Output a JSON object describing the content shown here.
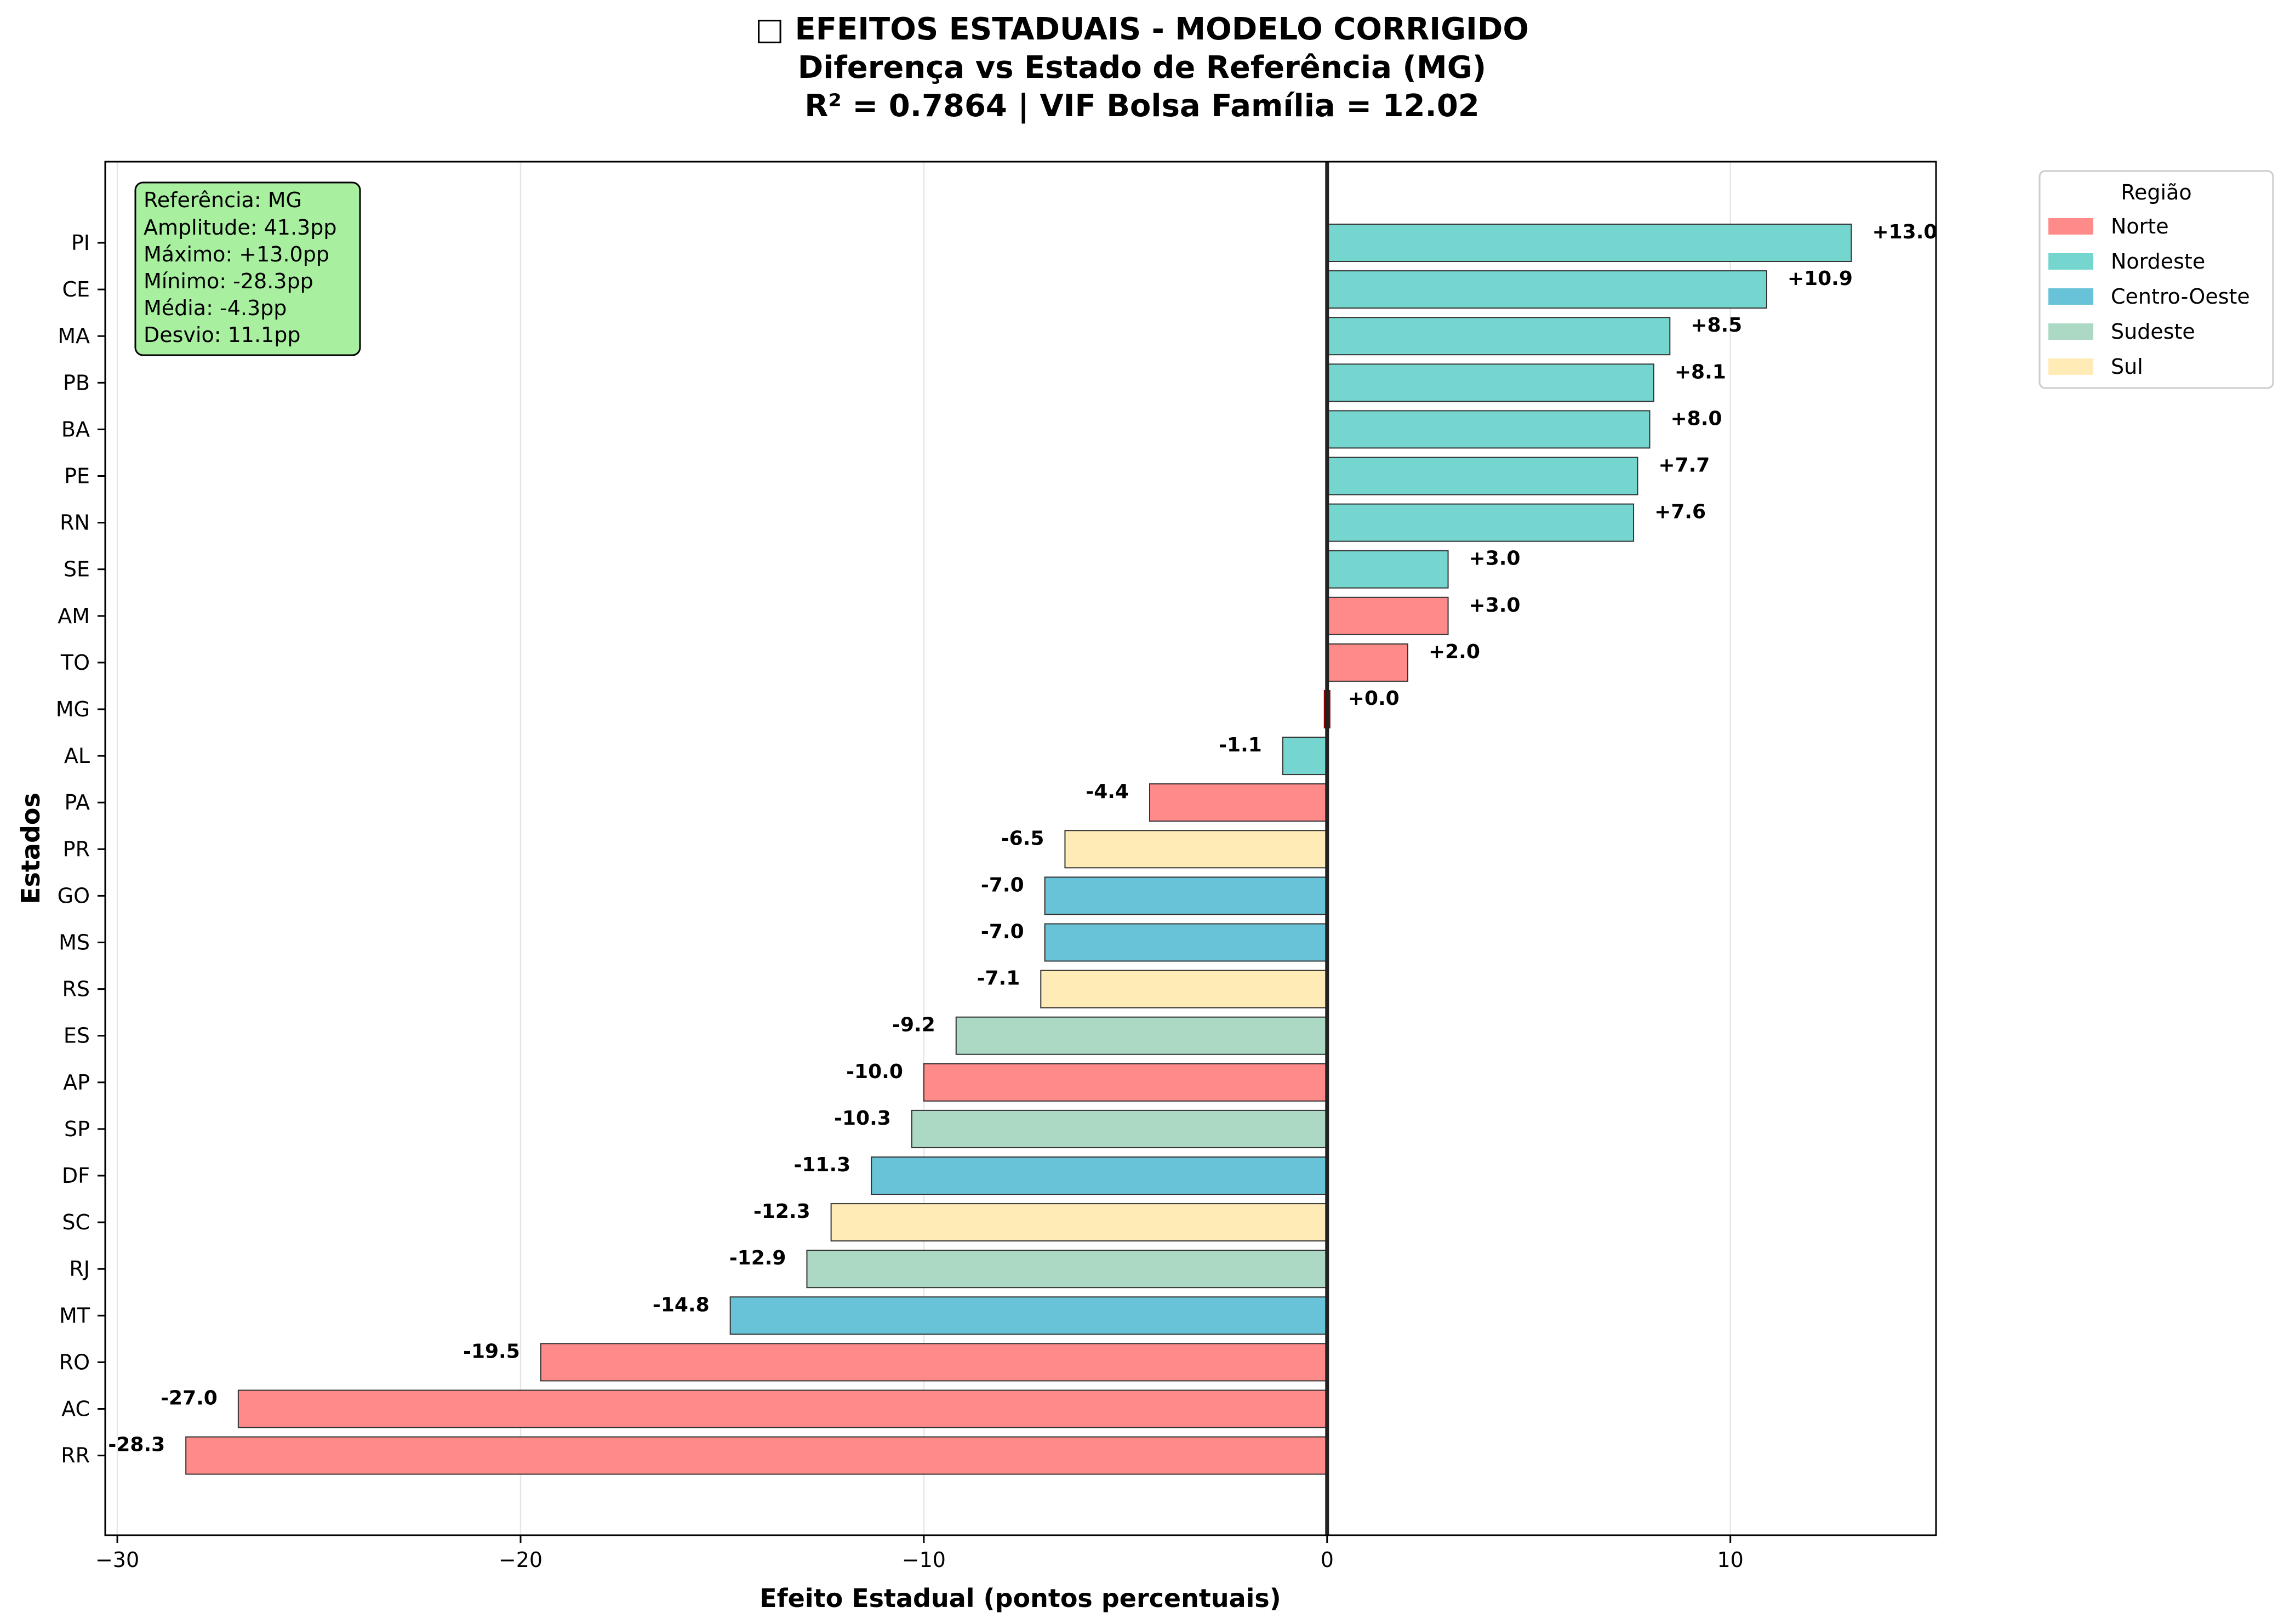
{
  "chart_data": {
    "type": "bar",
    "orientation": "horizontal",
    "title_lines": [
      "□ EFEITOS ESTADUAIS - MODELO CORRIGIDO",
      "Diferença vs Estado de Referência (MG)",
      "R² = 0.7864 | VIF Bolsa Família = 12.02"
    ],
    "xlabel": "Efeito Estadual (pontos percentuais)",
    "ylabel": "Estados",
    "xlim": [
      -30.3,
      15.1
    ],
    "xticks": [
      -30,
      -20,
      -10,
      0,
      10
    ],
    "xtick_labels": [
      "−30",
      "−20",
      "−10",
      "0",
      "10"
    ],
    "grid": "x",
    "reference_line": 0,
    "colors": {
      "Norte": "#ff8a8a",
      "Nordeste": "#74d6cf",
      "Centro-Oeste": "#68c3d8",
      "Sudeste": "#abd9c4",
      "Sul": "#ffebb5",
      "reference": "#8b0000"
    },
    "categories": [
      "PI",
      "CE",
      "MA",
      "PB",
      "BA",
      "PE",
      "RN",
      "SE",
      "AM",
      "TO",
      "MG",
      "AL",
      "PA",
      "PR",
      "GO",
      "MS",
      "RS",
      "ES",
      "AP",
      "SP",
      "DF",
      "SC",
      "RJ",
      "MT",
      "RO",
      "AC",
      "RR"
    ],
    "values": [
      13.0,
      10.9,
      8.5,
      8.1,
      8.0,
      7.7,
      7.6,
      3.0,
      3.0,
      2.0,
      0.0,
      -1.1,
      -4.4,
      -6.5,
      -7.0,
      -7.0,
      -7.1,
      -9.2,
      -10.0,
      -10.3,
      -11.3,
      -12.3,
      -12.9,
      -14.8,
      -19.5,
      -27.0,
      -28.3
    ],
    "value_labels": [
      "+13.0",
      "+10.9",
      "+8.5",
      "+8.1",
      "+8.0",
      "+7.7",
      "+7.6",
      "+3.0",
      "+3.0",
      "+2.0",
      "+0.0",
      "-1.1",
      "-4.4",
      "-6.5",
      "-7.0",
      "-7.0",
      "-7.1",
      "-9.2",
      "-10.0",
      "-10.3",
      "-11.3",
      "-12.3",
      "-12.9",
      "-14.8",
      "-19.5",
      "-27.0",
      "-28.3"
    ],
    "regions": [
      "Nordeste",
      "Nordeste",
      "Nordeste",
      "Nordeste",
      "Nordeste",
      "Nordeste",
      "Nordeste",
      "Nordeste",
      "Norte",
      "Norte",
      "reference",
      "Nordeste",
      "Norte",
      "Sul",
      "Centro-Oeste",
      "Centro-Oeste",
      "Sul",
      "Sudeste",
      "Norte",
      "Sudeste",
      "Centro-Oeste",
      "Sul",
      "Sudeste",
      "Centro-Oeste",
      "Norte",
      "Norte",
      "Norte"
    ],
    "stats_box": [
      "Referência: MG",
      "Amplitude: 41.3pp",
      "Máximo: +13.0pp",
      "Mínimo: -28.3pp",
      "Média: -4.3pp",
      "Desvio: 11.1pp"
    ],
    "stats_box_color": "#a8f0a0",
    "legend": {
      "title": "Região",
      "placement": "outside-top-right",
      "entries": [
        "Norte",
        "Nordeste",
        "Centro-Oeste",
        "Sudeste",
        "Sul"
      ]
    }
  }
}
